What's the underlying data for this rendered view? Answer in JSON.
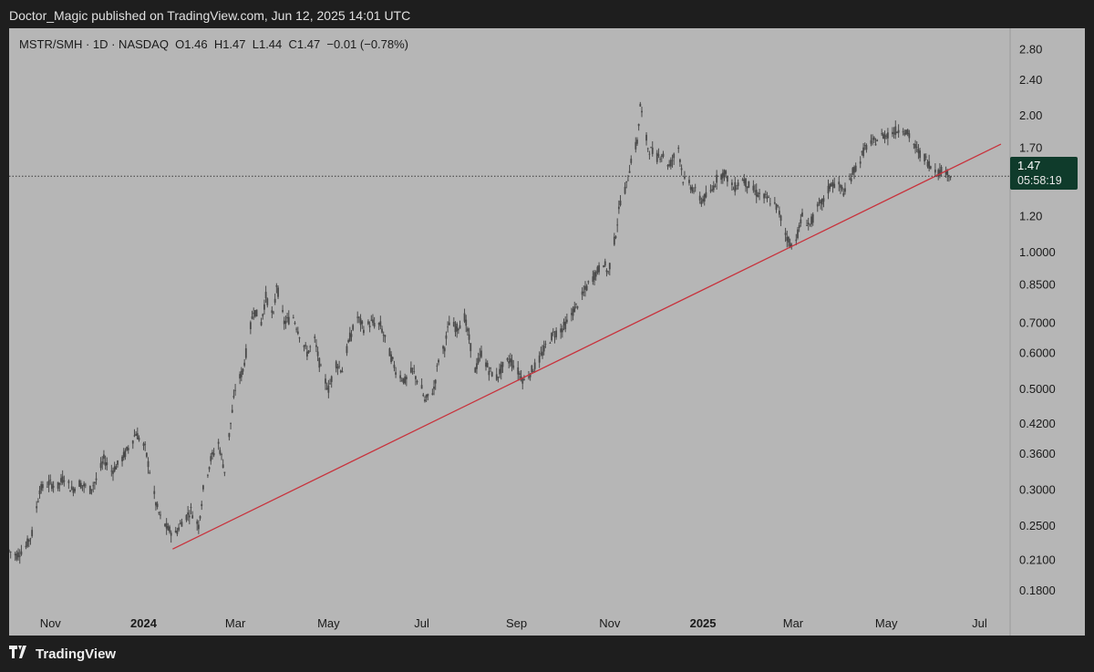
{
  "header": {
    "publish_text": "Doctor_Magic published on TradingView.com, Jun 12, 2025 14:01 UTC"
  },
  "footer": {
    "brand": "TradingView",
    "logo_icon": "tradingview-logo-icon"
  },
  "colors": {
    "background": "#b6b6b6",
    "candles": "#4a4a4a",
    "trendline": "#c8323c",
    "price_badge": "#0f3b2b",
    "page": "#1e1e1e"
  },
  "chart_data": {
    "type": "candlestick",
    "symbol_line": "MSTR/SMH · 1D · NASDAQ  O1.46  H1.47  L1.44  C1.47  −0.01 (−0.78%)",
    "scale": "log",
    "ylim": [
      0.16,
      3.0
    ],
    "y_ticks": [
      "2.80",
      "2.40",
      "2.00",
      "1.70",
      "1.20",
      "1.0000",
      "0.8500",
      "0.7000",
      "0.6000",
      "0.5000",
      "0.4200",
      "0.3600",
      "0.3000",
      "0.2500",
      "0.2100",
      "0.1800"
    ],
    "x_ticks": [
      {
        "label": "Nov",
        "date": "2023-11-01",
        "bold": false
      },
      {
        "label": "2024",
        "date": "2024-01-01",
        "bold": true
      },
      {
        "label": "Mar",
        "date": "2024-03-01",
        "bold": false
      },
      {
        "label": "May",
        "date": "2024-05-01",
        "bold": false
      },
      {
        "label": "Jul",
        "date": "2024-07-01",
        "bold": false
      },
      {
        "label": "Sep",
        "date": "2024-09-01",
        "bold": false
      },
      {
        "label": "Nov",
        "date": "2024-11-01",
        "bold": false
      },
      {
        "label": "2025",
        "date": "2025-01-01",
        "bold": true
      },
      {
        "label": "Mar",
        "date": "2025-03-01",
        "bold": false
      },
      {
        "label": "May",
        "date": "2025-05-01",
        "bold": false
      },
      {
        "label": "Jul",
        "date": "2025-07-01",
        "bold": false
      }
    ],
    "x_range": [
      "2023-10-05",
      "2025-07-21"
    ],
    "current_price": {
      "value": 1.47,
      "label": "1.47",
      "countdown": "05:58:19"
    },
    "trendline": {
      "start": {
        "date": "2024-01-20",
        "value": 0.222
      },
      "end": {
        "date": "2025-07-15",
        "value": 1.73
      }
    },
    "series": [
      {
        "values": [
          [
            "2023-10-05",
            0.22
          ],
          [
            "2023-10-10",
            0.215
          ],
          [
            "2023-10-16",
            0.225
          ],
          [
            "2023-10-20",
            0.24
          ],
          [
            "2023-10-25",
            0.3
          ],
          [
            "2023-10-31",
            0.31
          ],
          [
            "2023-11-06",
            0.305
          ],
          [
            "2023-11-10",
            0.32
          ],
          [
            "2023-11-15",
            0.3
          ],
          [
            "2023-11-20",
            0.31
          ],
          [
            "2023-11-27",
            0.3
          ],
          [
            "2023-12-01",
            0.315
          ],
          [
            "2023-12-06",
            0.35
          ],
          [
            "2023-12-11",
            0.33
          ],
          [
            "2023-12-15",
            0.34
          ],
          [
            "2023-12-20",
            0.36
          ],
          [
            "2023-12-27",
            0.4
          ],
          [
            "2024-01-02",
            0.37
          ],
          [
            "2024-01-05",
            0.33
          ],
          [
            "2024-01-09",
            0.28
          ],
          [
            "2024-01-12",
            0.26
          ],
          [
            "2024-01-17",
            0.245
          ],
          [
            "2024-01-22",
            0.24
          ],
          [
            "2024-01-26",
            0.255
          ],
          [
            "2024-02-01",
            0.27
          ],
          [
            "2024-02-06",
            0.25
          ],
          [
            "2024-02-09",
            0.3
          ],
          [
            "2024-02-14",
            0.35
          ],
          [
            "2024-02-19",
            0.38
          ],
          [
            "2024-02-23",
            0.33
          ],
          [
            "2024-02-27",
            0.42
          ],
          [
            "2024-03-01",
            0.5
          ],
          [
            "2024-03-06",
            0.55
          ],
          [
            "2024-03-08",
            0.6
          ],
          [
            "2024-03-13",
            0.75
          ],
          [
            "2024-03-18",
            0.7
          ],
          [
            "2024-03-21",
            0.8
          ],
          [
            "2024-03-26",
            0.72
          ],
          [
            "2024-03-28",
            0.85
          ],
          [
            "2024-04-02",
            0.7
          ],
          [
            "2024-04-08",
            0.72
          ],
          [
            "2024-04-12",
            0.66
          ],
          [
            "2024-04-17",
            0.6
          ],
          [
            "2024-04-22",
            0.64
          ],
          [
            "2024-04-26",
            0.55
          ],
          [
            "2024-05-01",
            0.5
          ],
          [
            "2024-05-06",
            0.57
          ],
          [
            "2024-05-10",
            0.55
          ],
          [
            "2024-05-15",
            0.65
          ],
          [
            "2024-05-20",
            0.72
          ],
          [
            "2024-05-24",
            0.68
          ],
          [
            "2024-05-29",
            0.7
          ],
          [
            "2024-06-04",
            0.69
          ],
          [
            "2024-06-10",
            0.6
          ],
          [
            "2024-06-14",
            0.55
          ],
          [
            "2024-06-20",
            0.52
          ],
          [
            "2024-06-25",
            0.55
          ],
          [
            "2024-07-01",
            0.5
          ],
          [
            "2024-07-03",
            0.47
          ],
          [
            "2024-07-09",
            0.5
          ],
          [
            "2024-07-12",
            0.58
          ],
          [
            "2024-07-16",
            0.62
          ],
          [
            "2024-07-19",
            0.7
          ],
          [
            "2024-07-24",
            0.68
          ],
          [
            "2024-07-29",
            0.72
          ],
          [
            "2024-08-02",
            0.62
          ],
          [
            "2024-08-05",
            0.55
          ],
          [
            "2024-08-09",
            0.6
          ],
          [
            "2024-08-14",
            0.55
          ],
          [
            "2024-08-19",
            0.53
          ],
          [
            "2024-08-23",
            0.56
          ],
          [
            "2024-08-28",
            0.58
          ],
          [
            "2024-09-03",
            0.54
          ],
          [
            "2024-09-06",
            0.52
          ],
          [
            "2024-09-11",
            0.55
          ],
          [
            "2024-09-16",
            0.58
          ],
          [
            "2024-09-20",
            0.62
          ],
          [
            "2024-09-25",
            0.66
          ],
          [
            "2024-10-01",
            0.68
          ],
          [
            "2024-10-04",
            0.7
          ],
          [
            "2024-10-09",
            0.75
          ],
          [
            "2024-10-14",
            0.8
          ],
          [
            "2024-10-18",
            0.85
          ],
          [
            "2024-10-23",
            0.9
          ],
          [
            "2024-10-28",
            0.95
          ],
          [
            "2024-10-31",
            0.9
          ],
          [
            "2024-11-05",
            1.1
          ],
          [
            "2024-11-08",
            1.3
          ],
          [
            "2024-11-12",
            1.4
          ],
          [
            "2024-11-15",
            1.6
          ],
          [
            "2024-11-19",
            1.75
          ],
          [
            "2024-11-21",
            2.1
          ],
          [
            "2024-11-26",
            1.7
          ],
          [
            "2024-12-02",
            1.62
          ],
          [
            "2024-12-05",
            1.65
          ],
          [
            "2024-12-10",
            1.55
          ],
          [
            "2024-12-16",
            1.7
          ],
          [
            "2024-12-19",
            1.45
          ],
          [
            "2024-12-24",
            1.4
          ],
          [
            "2024-12-31",
            1.3
          ],
          [
            "2025-01-06",
            1.35
          ],
          [
            "2025-01-10",
            1.45
          ],
          [
            "2025-01-15",
            1.5
          ],
          [
            "2025-01-21",
            1.38
          ],
          [
            "2025-01-27",
            1.45
          ],
          [
            "2025-01-31",
            1.4
          ],
          [
            "2025-02-05",
            1.35
          ],
          [
            "2025-02-10",
            1.32
          ],
          [
            "2025-02-14",
            1.3
          ],
          [
            "2025-02-19",
            1.25
          ],
          [
            "2025-02-24",
            1.1
          ],
          [
            "2025-02-28",
            1.03
          ],
          [
            "2025-03-04",
            1.1
          ],
          [
            "2025-03-07",
            1.2
          ],
          [
            "2025-03-12",
            1.15
          ],
          [
            "2025-03-17",
            1.25
          ],
          [
            "2025-03-21",
            1.3
          ],
          [
            "2025-03-26",
            1.42
          ],
          [
            "2025-03-31",
            1.4
          ],
          [
            "2025-04-04",
            1.35
          ],
          [
            "2025-04-09",
            1.5
          ],
          [
            "2025-04-14",
            1.6
          ],
          [
            "2025-04-17",
            1.7
          ],
          [
            "2025-04-23",
            1.75
          ],
          [
            "2025-04-28",
            1.8
          ],
          [
            "2025-05-02",
            1.82
          ],
          [
            "2025-05-07",
            1.85
          ],
          [
            "2025-05-12",
            1.88
          ],
          [
            "2025-05-16",
            1.8
          ],
          [
            "2025-05-21",
            1.68
          ],
          [
            "2025-05-27",
            1.6
          ],
          [
            "2025-05-30",
            1.55
          ],
          [
            "2025-06-04",
            1.5
          ],
          [
            "2025-06-09",
            1.52
          ],
          [
            "2025-06-12",
            1.47
          ]
        ]
      }
    ]
  }
}
